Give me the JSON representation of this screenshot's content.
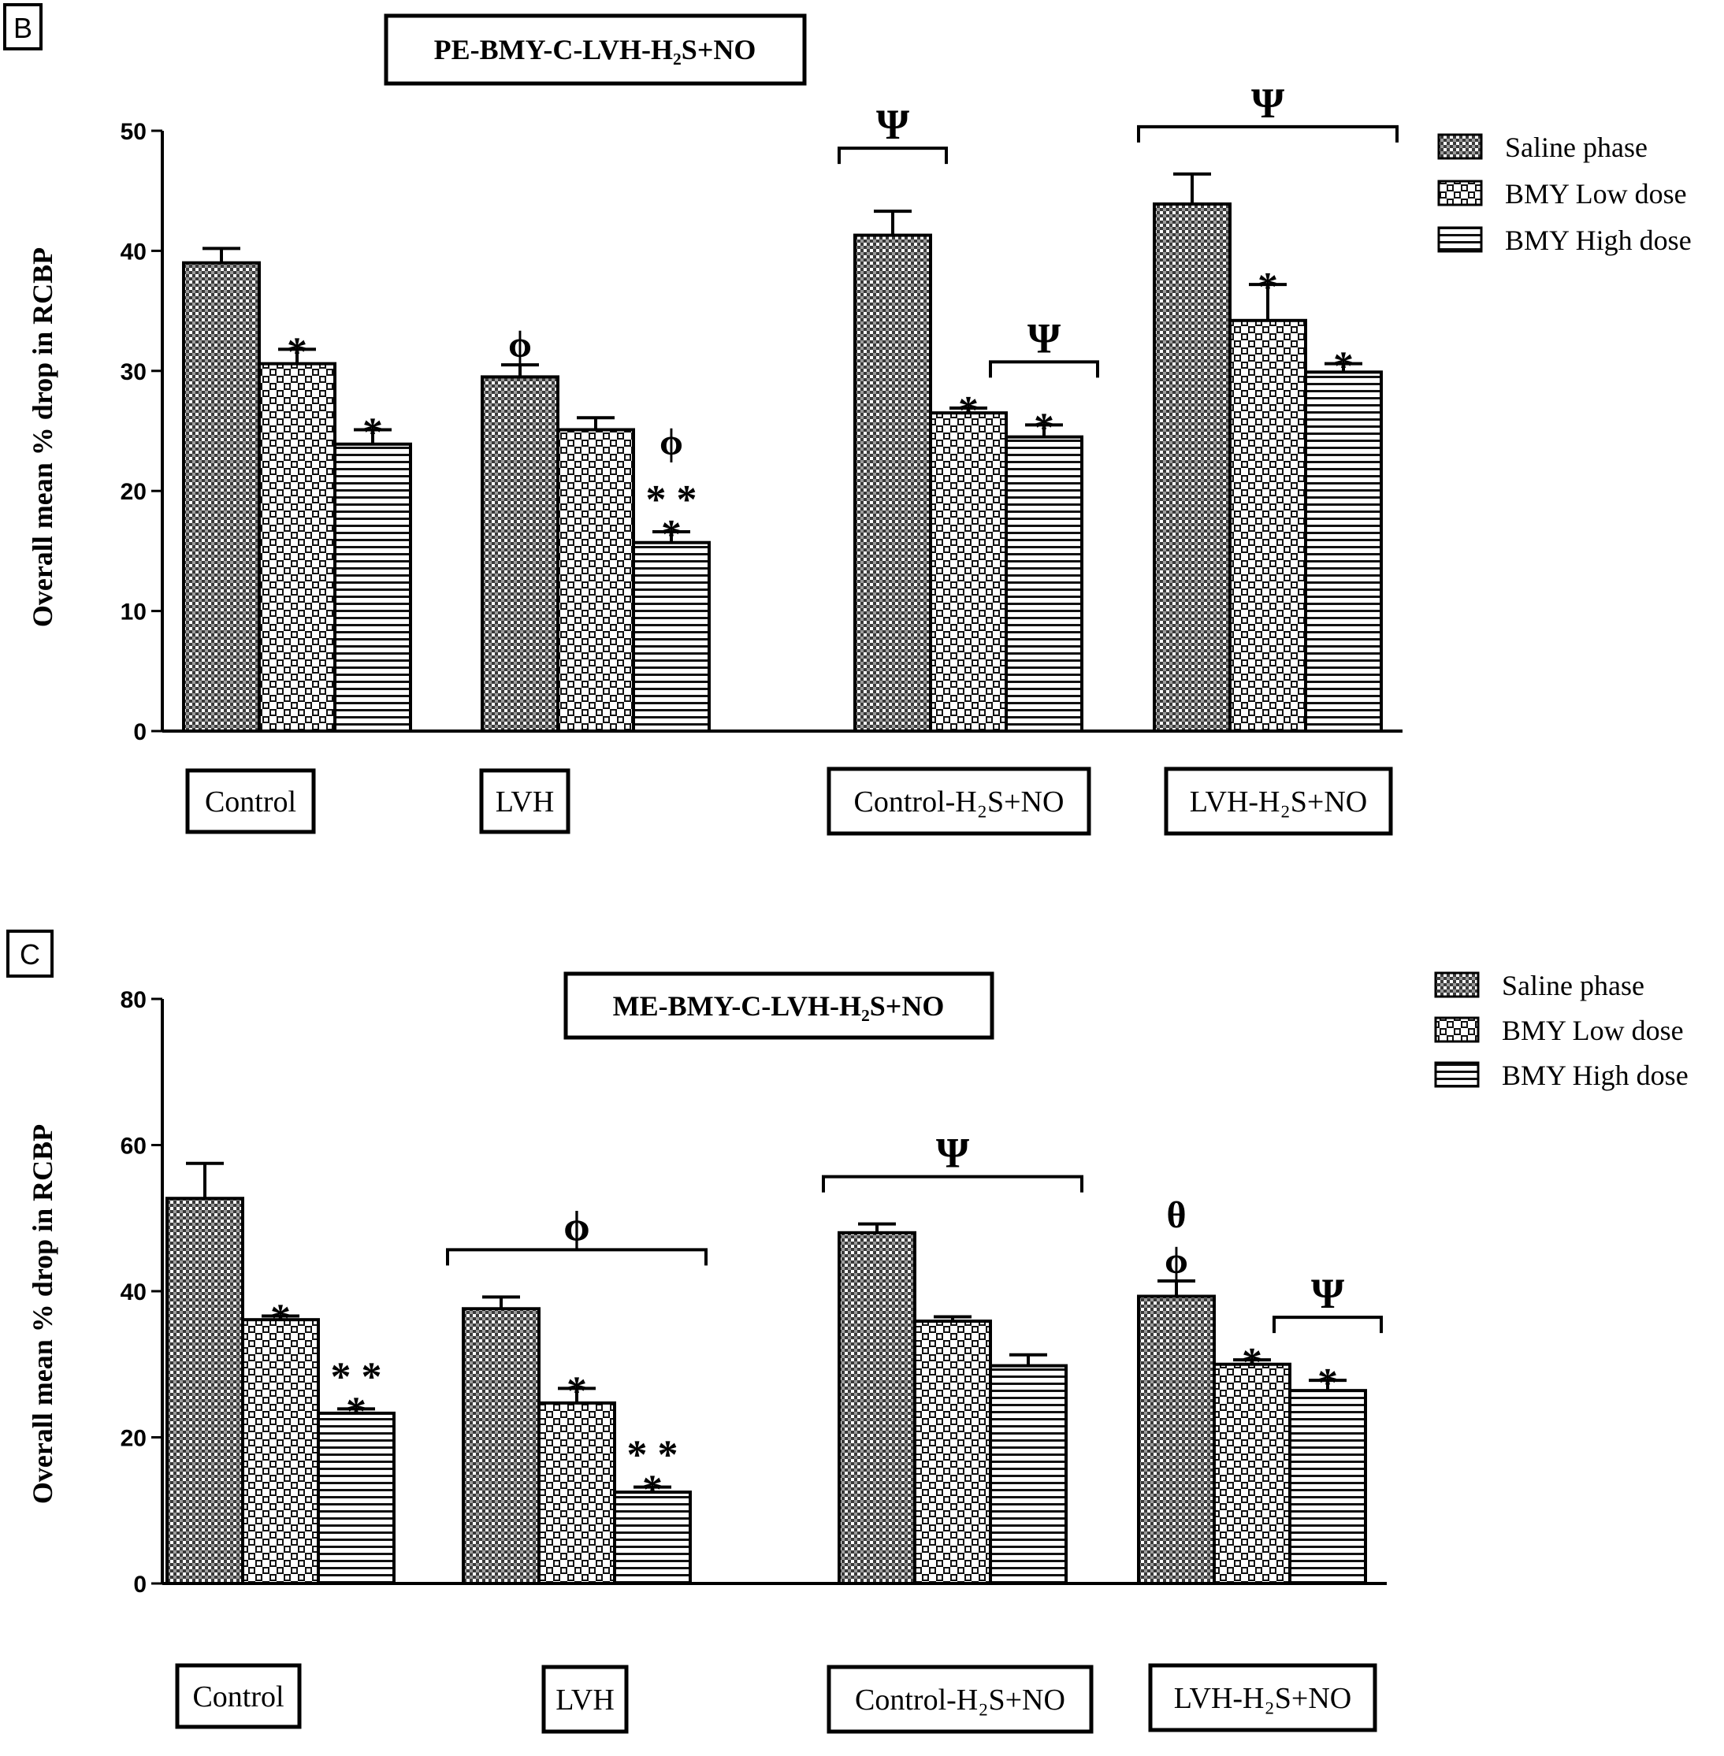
{
  "chart_data": [
    {
      "type": "bar",
      "panel_label": "B",
      "title": "PE-BMY-C-LVH-H₂S+NO",
      "ylabel": "Overall  mean % drop in RCBP",
      "ylim": [
        0,
        50
      ],
      "yticks": [
        "0",
        "10",
        "20",
        "30",
        "40",
        "50"
      ],
      "categories": [
        "Control",
        "LVH",
        "Control-H₂S+NO",
        "LVH-H₂S+NO"
      ],
      "legend_position": "right",
      "series": [
        {
          "name": "Saline phase",
          "pattern": "dense",
          "values": [
            39,
            29.5,
            41.3,
            43.9
          ],
          "errors": [
            1.2,
            1.0,
            2.0,
            2.5
          ]
        },
        {
          "name": "BMY Low dose",
          "pattern": "checker",
          "values": [
            30.6,
            25.1,
            26.5,
            34.2
          ],
          "errors": [
            1.2,
            1.0,
            0.4,
            3.0
          ]
        },
        {
          "name": "BMY High dose",
          "pattern": "lines",
          "values": [
            23.9,
            15.7,
            24.5,
            29.9
          ],
          "errors": [
            1.2,
            0.9,
            1.0,
            0.7
          ]
        }
      ],
      "annotations": [
        {
          "text": "*",
          "group": 0,
          "series": 1
        },
        {
          "text": "*",
          "group": 0,
          "series": 2
        },
        {
          "text": "ϕ",
          "group": 1,
          "series": 0
        },
        {
          "text": "ϕ",
          "group": 1,
          "series": 2
        },
        {
          "text": "* *",
          "group": 1,
          "series": 2
        },
        {
          "text": "*",
          "group": 1,
          "series": 2
        },
        {
          "text": "*",
          "group": 2,
          "series": 1
        },
        {
          "text": "*",
          "group": 2,
          "series": 2
        },
        {
          "text": "*",
          "group": 3,
          "series": 1
        },
        {
          "text": "*",
          "group": 3,
          "series": 2
        }
      ],
      "brackets": [
        {
          "text": "Ψ",
          "group": 2,
          "from": 0,
          "to": 0
        },
        {
          "text": "Ψ",
          "group": 2,
          "from": 2,
          "to": 2
        },
        {
          "text": "Ψ",
          "group": 3,
          "from": 0,
          "to": 2
        }
      ]
    },
    {
      "type": "bar",
      "panel_label": "C",
      "title": "ME-BMY-C-LVH-H₂S+NO",
      "ylabel": "Overall  mean % drop in RCBP",
      "ylim": [
        0,
        80
      ],
      "yticks": [
        "0",
        "20",
        "40",
        "60",
        "80"
      ],
      "categories": [
        "Control",
        "LVH",
        "Control-H₂S+NO",
        "LVH-H₂S+NO"
      ],
      "legend_position": "right",
      "series": [
        {
          "name": "Saline phase",
          "pattern": "dense",
          "values": [
            52.7,
            37.6,
            48,
            39.3
          ],
          "errors": [
            4.8,
            1.6,
            1.2,
            2.1
          ]
        },
        {
          "name": "BMY Low dose",
          "pattern": "checker",
          "values": [
            36.1,
            24.7,
            35.9,
            30
          ],
          "errors": [
            0.5,
            2.0,
            0.6,
            0.6
          ]
        },
        {
          "name": "BMY High dose",
          "pattern": "lines",
          "values": [
            23.3,
            12.5,
            29.8,
            26.4
          ],
          "errors": [
            0.6,
            0.7,
            1.5,
            1.4
          ]
        }
      ],
      "annotations": [
        {
          "text": "*",
          "group": 0,
          "series": 1
        },
        {
          "text": "* *",
          "group": 0,
          "series": 2
        },
        {
          "text": "*",
          "group": 0,
          "series": 2
        },
        {
          "text": "*",
          "group": 1,
          "series": 1
        },
        {
          "text": "* *",
          "group": 1,
          "series": 2
        },
        {
          "text": "*",
          "group": 1,
          "series": 2
        },
        {
          "text": "θ",
          "group": 3,
          "series": 0
        },
        {
          "text": "ϕ",
          "group": 3,
          "series": 0
        },
        {
          "text": "*",
          "group": 3,
          "series": 1
        },
        {
          "text": "*",
          "group": 3,
          "series": 2
        }
      ],
      "brackets": [
        {
          "text": "ϕ",
          "group": 1,
          "from": 0,
          "to": 2
        },
        {
          "text": "Ψ",
          "group": 2,
          "from": 0,
          "to": 2
        },
        {
          "text": "Ψ",
          "group": 3,
          "from": 2,
          "to": 2
        }
      ]
    }
  ]
}
